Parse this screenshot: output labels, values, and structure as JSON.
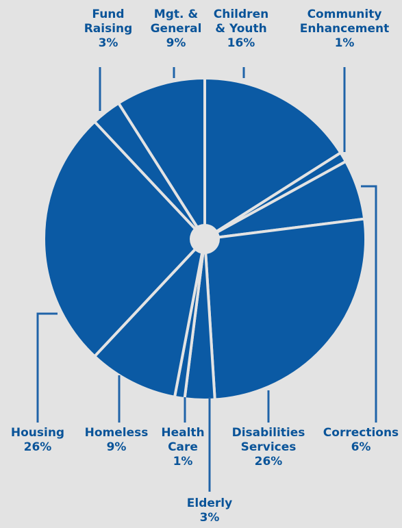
{
  "chart_data": {
    "type": "pie",
    "title": "",
    "colors": {
      "slice": "#0b5aa4",
      "text": "#0a5499",
      "background": "#e3e3e3"
    },
    "slices": [
      {
        "name": "Children & Youth",
        "label_lines": [
          "Children",
          "& Youth"
        ],
        "pct_label": "16%",
        "value": 16
      },
      {
        "name": "Community Enhancement",
        "label_lines": [
          "Community",
          "Enhancement"
        ],
        "pct_label": "1%",
        "value": 1
      },
      {
        "name": "Corrections",
        "label_lines": [
          "Corrections"
        ],
        "pct_label": "6%",
        "value": 6
      },
      {
        "name": "Disabilities Services",
        "label_lines": [
          "Disabilities",
          "Services"
        ],
        "pct_label": "26%",
        "value": 26
      },
      {
        "name": "Elderly",
        "label_lines": [
          "Elderly"
        ],
        "pct_label": "3%",
        "value": 3
      },
      {
        "name": "Health Care",
        "label_lines": [
          "Health",
          "Care"
        ],
        "pct_label": "1%",
        "value": 1
      },
      {
        "name": "Homeless",
        "label_lines": [
          "Homeless"
        ],
        "pct_label": "9%",
        "value": 9
      },
      {
        "name": "Housing",
        "label_lines": [
          "Housing"
        ],
        "pct_label": "26%",
        "value": 26
      },
      {
        "name": "Fund Raising",
        "label_lines": [
          "Fund",
          "Raising"
        ],
        "pct_label": "3%",
        "value": 3
      },
      {
        "name": "Mgt. & General",
        "label_lines": [
          "Mgt. &",
          "General"
        ],
        "pct_label": "9%",
        "value": 9
      }
    ]
  }
}
